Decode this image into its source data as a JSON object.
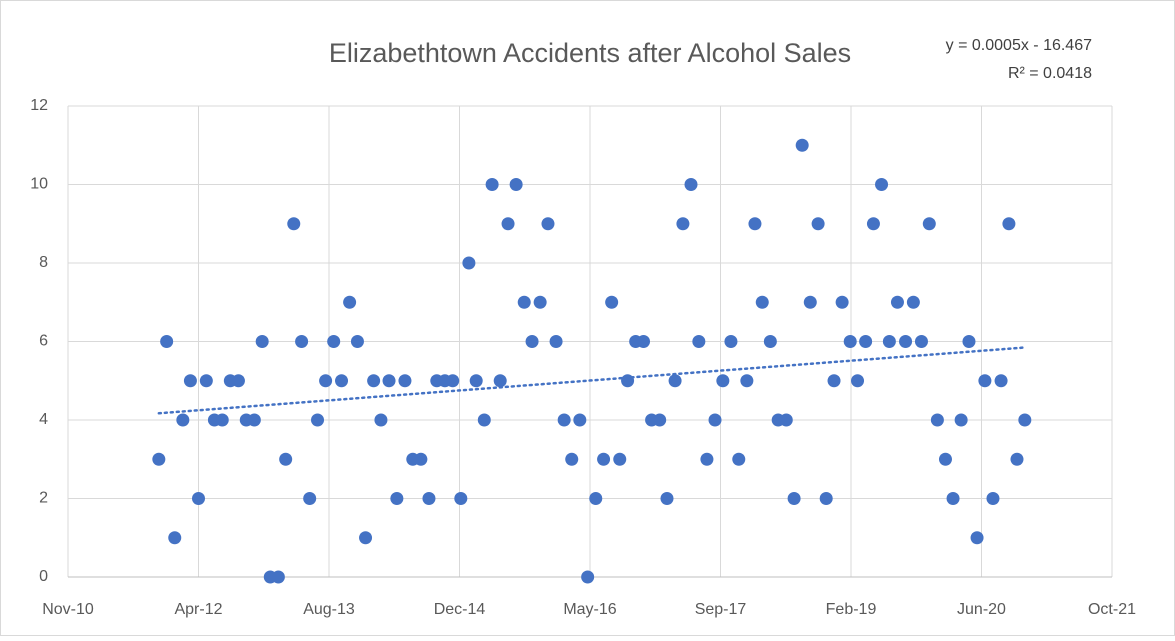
{
  "chart_data": {
    "type": "scatter",
    "title": "Elizabethtown Accidents after Alcohol Sales",
    "trendline": {
      "equation": "y = 0.0005x - 16.467",
      "r_squared": "R² = 0.0418",
      "color": "#4472c4"
    },
    "xlim": [
      40500,
      44500
    ],
    "xticks": [
      {
        "value": 40500,
        "label": "Nov-10"
      },
      {
        "value": 41000,
        "label": "Apr-12"
      },
      {
        "value": 41500,
        "label": "Aug-13"
      },
      {
        "value": 42000,
        "label": "Dec-14"
      },
      {
        "value": 42500,
        "label": "May-16"
      },
      {
        "value": 43000,
        "label": "Sep-17"
      },
      {
        "value": 43500,
        "label": "Feb-19"
      },
      {
        "value": 44000,
        "label": "Jun-20"
      },
      {
        "value": 44500,
        "label": "Oct-21"
      }
    ],
    "ylim": [
      0,
      12
    ],
    "yticks": [
      0,
      2,
      4,
      6,
      8,
      10,
      12
    ],
    "grid": true,
    "series": [
      {
        "color": "#4472c4",
        "x": [
          40848,
          40878,
          40909,
          40940,
          40969,
          41000,
          41030,
          41061,
          41091,
          41122,
          41153,
          41183,
          41214,
          41244,
          41275,
          41306,
          41334,
          41365,
          41395,
          41426,
          41456,
          41487,
          41518,
          41548,
          41579,
          41609,
          41640,
          41671,
          41699,
          41730,
          41760,
          41791,
          41821,
          41852,
          41883,
          41913,
          41944,
          41974,
          42005,
          42036,
          42064,
          42095,
          42125,
          42156,
          42186,
          42217,
          42248,
          42278,
          42309,
          42339,
          42370,
          42401,
          42430,
          42461,
          42491,
          42522,
          42552,
          42583,
          42614,
          42644,
          42675,
          42705,
          42736,
          42767,
          42795,
          42826,
          42856,
          42887,
          42917,
          42948,
          42979,
          43009,
          43040,
          43070,
          43101,
          43132,
          43160,
          43191,
          43221,
          43252,
          43282,
          43313,
          43344,
          43374,
          43405,
          43435,
          43466,
          43497,
          43525,
          43556,
          43586,
          43617,
          43647,
          43678,
          43709,
          43739,
          43770,
          43800,
          43831,
          43862,
          43891,
          43922,
          43952,
          43983,
          44013,
          44044,
          44075,
          44105,
          44136,
          44166
        ],
        "values": [
          3,
          6,
          1,
          4,
          5,
          2,
          5,
          4,
          4,
          5,
          5,
          4,
          4,
          6,
          0,
          0,
          3,
          9,
          6,
          2,
          4,
          5,
          6,
          5,
          7,
          6,
          1,
          5,
          4,
          5,
          2,
          5,
          3,
          3,
          2,
          5,
          5,
          5,
          2,
          8,
          5,
          4,
          10,
          5,
          9,
          10,
          7,
          6,
          7,
          9,
          6,
          4,
          3,
          4,
          0,
          2,
          3,
          7,
          3,
          5,
          6,
          6,
          4,
          4,
          2,
          5,
          9,
          10,
          6,
          3,
          4,
          5,
          6,
          3,
          5,
          9,
          7,
          6,
          4,
          4,
          2,
          11,
          7,
          9,
          2,
          5,
          7,
          6,
          5,
          6,
          9,
          10,
          6,
          7,
          6,
          7,
          6,
          9,
          4,
          3,
          2,
          4,
          6,
          1,
          5,
          2,
          5,
          9,
          3,
          4
        ]
      }
    ]
  }
}
